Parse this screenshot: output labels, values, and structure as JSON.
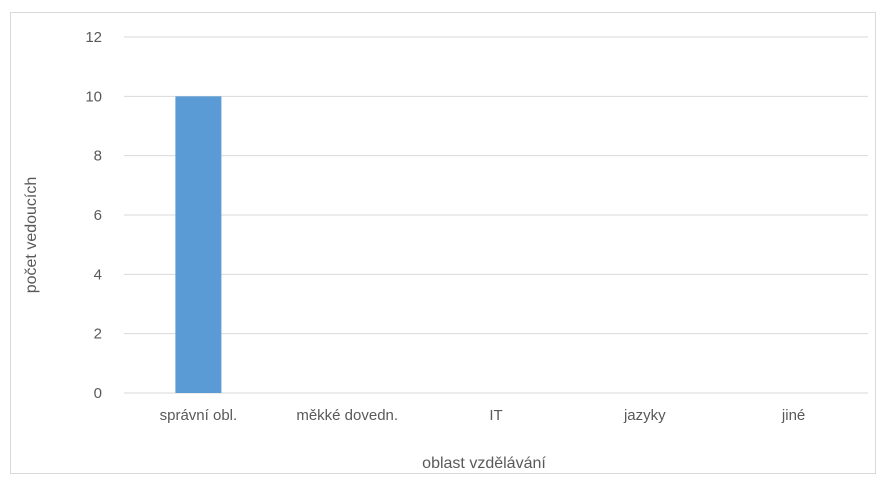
{
  "chart_data": {
    "type": "bar",
    "categories": [
      "správní obl.",
      "měkké dovedn.",
      "IT",
      "jazyky",
      "jiné"
    ],
    "values": [
      10,
      0,
      0,
      0,
      0
    ],
    "title": "",
    "xlabel": "oblast vzdělávání",
    "ylabel": "počet vedoucích",
    "ylim": [
      0,
      12
    ],
    "yticks": [
      0,
      2,
      4,
      6,
      8,
      10,
      12
    ],
    "grid": true,
    "legend": "none",
    "bar_color": "#5B9BD5",
    "grid_color": "#d9d9d9"
  }
}
